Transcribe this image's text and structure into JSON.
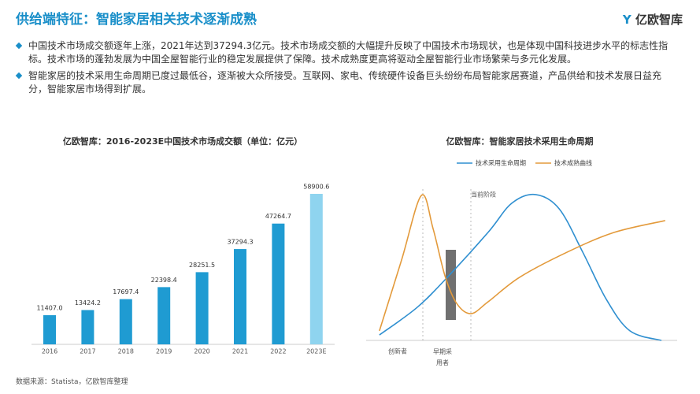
{
  "header": {
    "title": "供给端特征：智能家居相关技术逐渐成熟",
    "logo": "亿欧智库"
  },
  "bullets": [
    "中国技术市场成交额逐年上涨，2021年达到37294.3亿元。技术市场成交额的大幅提升反映了中国技术市场现状，也是体现中国科技进步水平的标志性指标。技术市场的蓬勃发展为中国全屋智能行业的稳定发展提供了保障。技术成熟度更高将驱动全屋智能行业市场繁荣与多元化发展。",
    "智能家居的技术采用生命周期已度过最低谷，逐渐被大众所接受。互联网、家电、传统硬件设备巨头纷纷布局智能家居赛道，产品供给和技术发展日益充分，智能家居市场得到扩展。"
  ],
  "source": "数据来源：Statista，亿欧智库整理",
  "chart_data": [
    {
      "type": "bar",
      "title": "亿欧智库：2016-2023E中国技术市场成交额（单位：亿元）",
      "categories": [
        "2016",
        "2017",
        "2018",
        "2019",
        "2020",
        "2021",
        "2022",
        "2023E"
      ],
      "values": [
        11407.0,
        13424.2,
        17697.4,
        22398.4,
        28251.5,
        37294.3,
        47264.7,
        58900.6
      ],
      "value_labels": [
        "11407.0",
        "13424.2",
        "17697.4",
        "22398.4",
        "28251.5",
        "37294.3",
        "47264.7",
        "58900.6"
      ],
      "colors": [
        "#1f9bd2",
        "#1f9bd2",
        "#1f9bd2",
        "#1f9bd2",
        "#1f9bd2",
        "#1f9bd2",
        "#1f9bd2",
        "#8fd4ef"
      ]
    },
    {
      "type": "line",
      "title": "亿欧智库：智能家居技术采用生命周期",
      "xlim": [
        0,
        100
      ],
      "ylim": [
        0,
        100
      ],
      "series": [
        {
          "name": "技术采用生命周期",
          "color": "#2f8fd0",
          "x": [
            0.5,
            13.5,
            24.3,
            37.8,
            45.9,
            54.1,
            62.2,
            70.3,
            78.4,
            86.5,
            97.3
          ],
          "values": [
            3.6,
            21.9,
            42.7,
            71.4,
            90.6,
            96.4,
            87,
            58.3,
            27.1,
            6.3,
            0
          ]
        },
        {
          "name": "技术成熟曲线",
          "color": "#e39a3b",
          "x": [
            0.5,
            8.1,
            14.9,
            18.9,
            23,
            27,
            31.9,
            37.8,
            48.6,
            64.9,
            81.1,
            98.6
          ],
          "values": [
            6.3,
            53.1,
            95.8,
            74,
            42.7,
            24.5,
            17.7,
            25.5,
            41.7,
            58.3,
            71.4,
            79.2
          ]
        }
      ],
      "annotation": "当前阶段",
      "stage_labels": [
        "创新者",
        "早期采用者"
      ]
    }
  ]
}
